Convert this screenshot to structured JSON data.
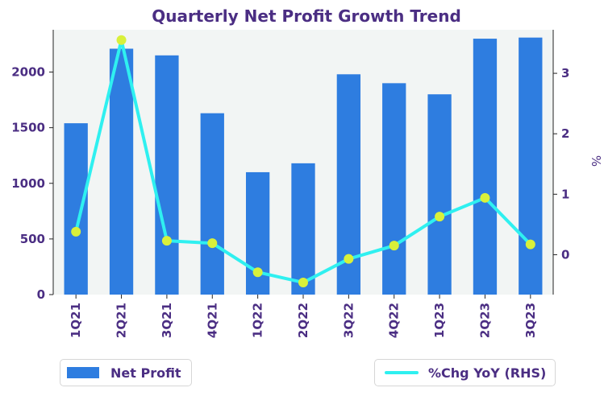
{
  "chart_data": {
    "type": "bar",
    "title": "Quarterly Net Profit Growth Trend",
    "categories": [
      "1Q21",
      "2Q21",
      "3Q21",
      "4Q21",
      "1Q22",
      "2Q22",
      "3Q22",
      "4Q22",
      "1Q23",
      "2Q23",
      "3Q23"
    ],
    "series": [
      {
        "name": "Net Profit",
        "type": "bar",
        "axis": "left",
        "values": [
          1540,
          2210,
          2150,
          1630,
          1100,
          1180,
          1980,
          1900,
          1800,
          2300,
          2310
        ]
      },
      {
        "name": "%Chg YoY (RHS)",
        "type": "line",
        "axis": "right",
        "values": [
          0.38,
          3.55,
          0.23,
          0.19,
          -0.29,
          -0.46,
          -0.07,
          0.15,
          0.63,
          0.94,
          0.17
        ]
      }
    ],
    "y_left": {
      "ticks": [
        0,
        500,
        1000,
        1500,
        2000
      ],
      "ylim": [
        0,
        2380
      ],
      "label": ""
    },
    "y_right": {
      "ticks": [
        0,
        1,
        2,
        3
      ],
      "ylim": [
        -0.66,
        3.72
      ],
      "label": "%"
    },
    "grid": false,
    "legend": [
      "bottom-left",
      "bottom-right"
    ],
    "colors": {
      "bar": "#2e7de0",
      "line": "#2ff0f0",
      "marker": "#d9f03a",
      "plot_bg": "#f2f5f4",
      "text": "#4b2e83"
    }
  },
  "legend": {
    "bar_label": "Net Profit",
    "line_label": "%Chg YoY (RHS)"
  }
}
